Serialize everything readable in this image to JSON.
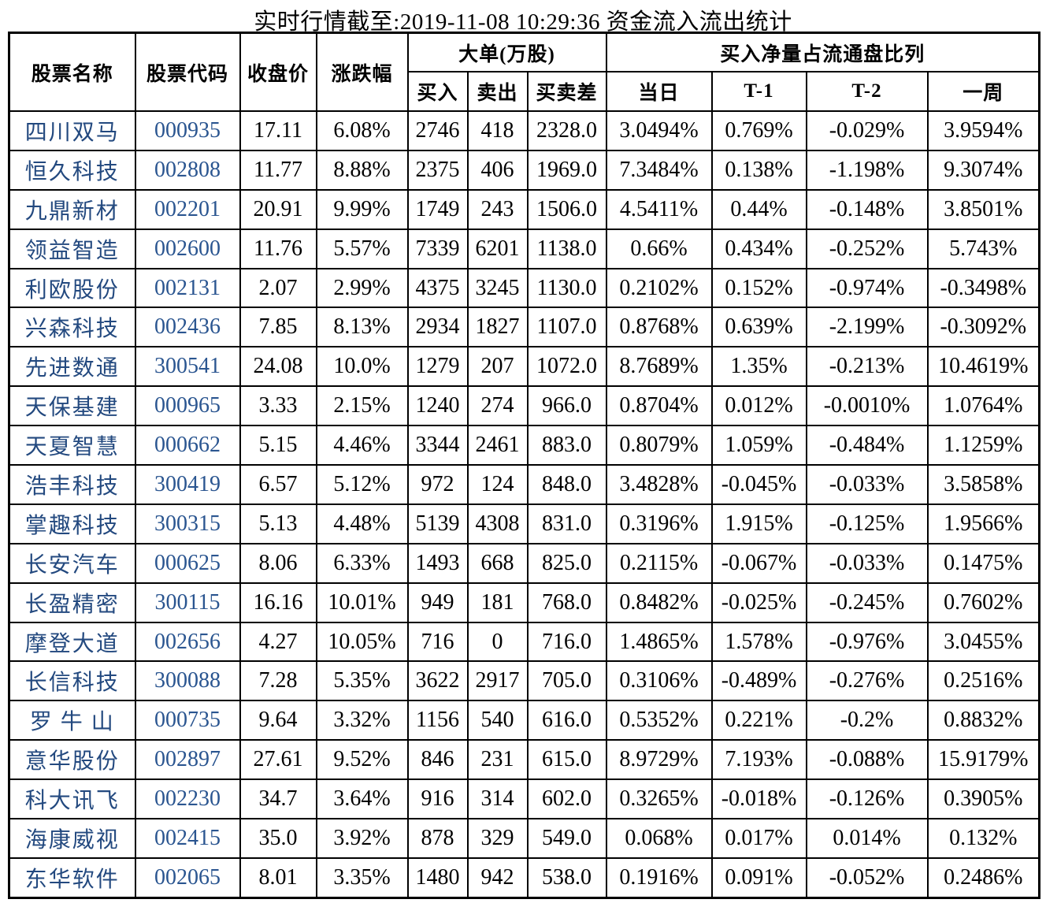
{
  "title": "实时行情截至:2019-11-08 10:29:36 资金流入流出统计",
  "colors": {
    "stock_name": "#23497F",
    "stock_code": "#2A5590",
    "text": "#000000",
    "border": "#000000",
    "background": "#FFFFFF"
  },
  "table": {
    "headers": {
      "stock_name": "股票名称",
      "stock_code": "股票代码",
      "close_price": "收盘价",
      "change_pct": "涨跌幅",
      "big_order_group": "大单(万股)",
      "buy": "买入",
      "sell": "卖出",
      "diff": "买卖差",
      "ratio_group": "买入净量占流通盘比列",
      "day": "当日",
      "t1": "T-1",
      "t2": "T-2",
      "week": "一周"
    },
    "rows": [
      [
        "四川双马",
        "000935",
        "17.11",
        "6.08%",
        "2746",
        "418",
        "2328.0",
        "3.0494%",
        "0.769%",
        "-0.029%",
        "3.9594%"
      ],
      [
        "恒久科技",
        "002808",
        "11.77",
        "8.88%",
        "2375",
        "406",
        "1969.0",
        "7.3484%",
        "0.138%",
        "-1.198%",
        "9.3074%"
      ],
      [
        "九鼎新材",
        "002201",
        "20.91",
        "9.99%",
        "1749",
        "243",
        "1506.0",
        "4.5411%",
        "0.44%",
        "-0.148%",
        "3.8501%"
      ],
      [
        "领益智造",
        "002600",
        "11.76",
        "5.57%",
        "7339",
        "6201",
        "1138.0",
        "0.66%",
        "0.434%",
        "-0.252%",
        "5.743%"
      ],
      [
        "利欧股份",
        "002131",
        "2.07",
        "2.99%",
        "4375",
        "3245",
        "1130.0",
        "0.2102%",
        "0.152%",
        "-0.974%",
        "-0.3498%"
      ],
      [
        "兴森科技",
        "002436",
        "7.85",
        "8.13%",
        "2934",
        "1827",
        "1107.0",
        "0.8768%",
        "0.639%",
        "-2.199%",
        "-0.3092%"
      ],
      [
        "先进数通",
        "300541",
        "24.08",
        "10.0%",
        "1279",
        "207",
        "1072.0",
        "8.7689%",
        "1.35%",
        "-0.213%",
        "10.4619%"
      ],
      [
        "天保基建",
        "000965",
        "3.33",
        "2.15%",
        "1240",
        "274",
        "966.0",
        "0.8704%",
        "0.012%",
        "-0.0010%",
        "1.0764%"
      ],
      [
        "天夏智慧",
        "000662",
        "5.15",
        "4.46%",
        "3344",
        "2461",
        "883.0",
        "0.8079%",
        "1.059%",
        "-0.484%",
        "1.1259%"
      ],
      [
        "浩丰科技",
        "300419",
        "6.57",
        "5.12%",
        "972",
        "124",
        "848.0",
        "3.4828%",
        "-0.045%",
        "-0.033%",
        "3.5858%"
      ],
      [
        "掌趣科技",
        "300315",
        "5.13",
        "4.48%",
        "5139",
        "4308",
        "831.0",
        "0.3196%",
        "1.915%",
        "-0.125%",
        "1.9566%"
      ],
      [
        "长安汽车",
        "000625",
        "8.06",
        "6.33%",
        "1493",
        "668",
        "825.0",
        "0.2115%",
        "-0.067%",
        "-0.033%",
        "0.1475%"
      ],
      [
        "长盈精密",
        "300115",
        "16.16",
        "10.01%",
        "949",
        "181",
        "768.0",
        "0.8482%",
        "-0.025%",
        "-0.245%",
        "0.7602%"
      ],
      [
        "摩登大道",
        "002656",
        "4.27",
        "10.05%",
        "716",
        "0",
        "716.0",
        "1.4865%",
        "1.578%",
        "-0.976%",
        "3.0455%"
      ],
      [
        "长信科技",
        "300088",
        "7.28",
        "5.35%",
        "3622",
        "2917",
        "705.0",
        "0.3106%",
        "-0.489%",
        "-0.276%",
        "0.2516%"
      ],
      [
        "罗 牛 山",
        "000735",
        "9.64",
        "3.32%",
        "1156",
        "540",
        "616.0",
        "0.5352%",
        "0.221%",
        "-0.2%",
        "0.8832%"
      ],
      [
        "意华股份",
        "002897",
        "27.61",
        "9.52%",
        "846",
        "231",
        "615.0",
        "8.9729%",
        "7.193%",
        "-0.088%",
        "15.9179%"
      ],
      [
        "科大讯飞",
        "002230",
        "34.7",
        "3.64%",
        "916",
        "314",
        "602.0",
        "0.3265%",
        "-0.018%",
        "-0.126%",
        "0.3905%"
      ],
      [
        "海康威视",
        "002415",
        "35.0",
        "3.92%",
        "878",
        "329",
        "549.0",
        "0.068%",
        "0.017%",
        "0.014%",
        "0.132%"
      ],
      [
        "东华软件",
        "002065",
        "8.01",
        "3.35%",
        "1480",
        "942",
        "538.0",
        "0.1916%",
        "0.091%",
        "-0.052%",
        "0.2486%"
      ]
    ]
  }
}
